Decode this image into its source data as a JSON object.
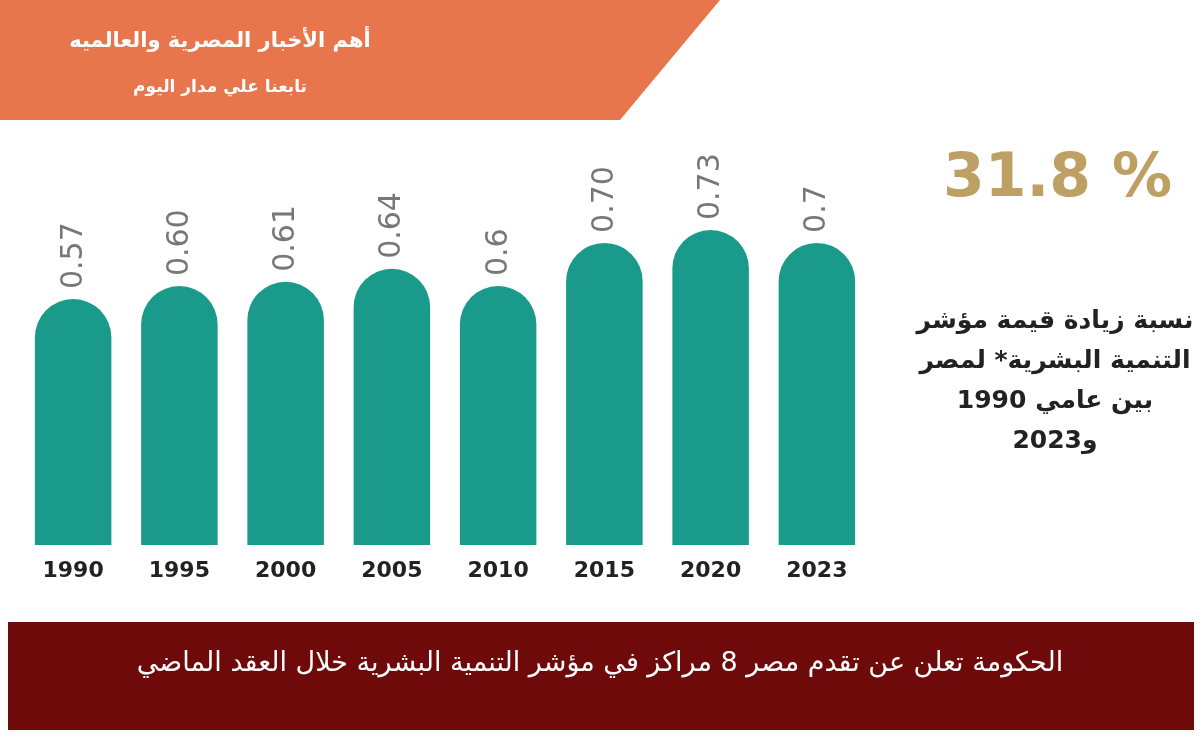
{
  "chart_data": {
    "type": "bar",
    "title": "الحكومة تعلن عن تقدم مصر 8 مراكز في مؤشر التنمية البشرية خلال العقد الماضي",
    "categories": [
      "1990",
      "1995",
      "2000",
      "2005",
      "2010",
      "2015",
      "2020",
      "2023"
    ],
    "values": [
      0.57,
      0.6,
      0.61,
      0.64,
      0.6,
      0.7,
      0.73,
      0.7
    ],
    "value_labels": [
      "0.57",
      "0.60",
      "0.61",
      "0.64",
      "0.6",
      "0.70",
      "0.73",
      "0.7"
    ],
    "color": "#1a9a8a",
    "annotations": [
      "31.8 %",
      "نسبة زيادة قيمة مؤشر التنمية البشرية* لمصر بين عامي 1990 و2023",
      "أهم الأخبار المصرية والعالميه",
      "تابعنا علي مدار اليوم"
    ]
  }
}
